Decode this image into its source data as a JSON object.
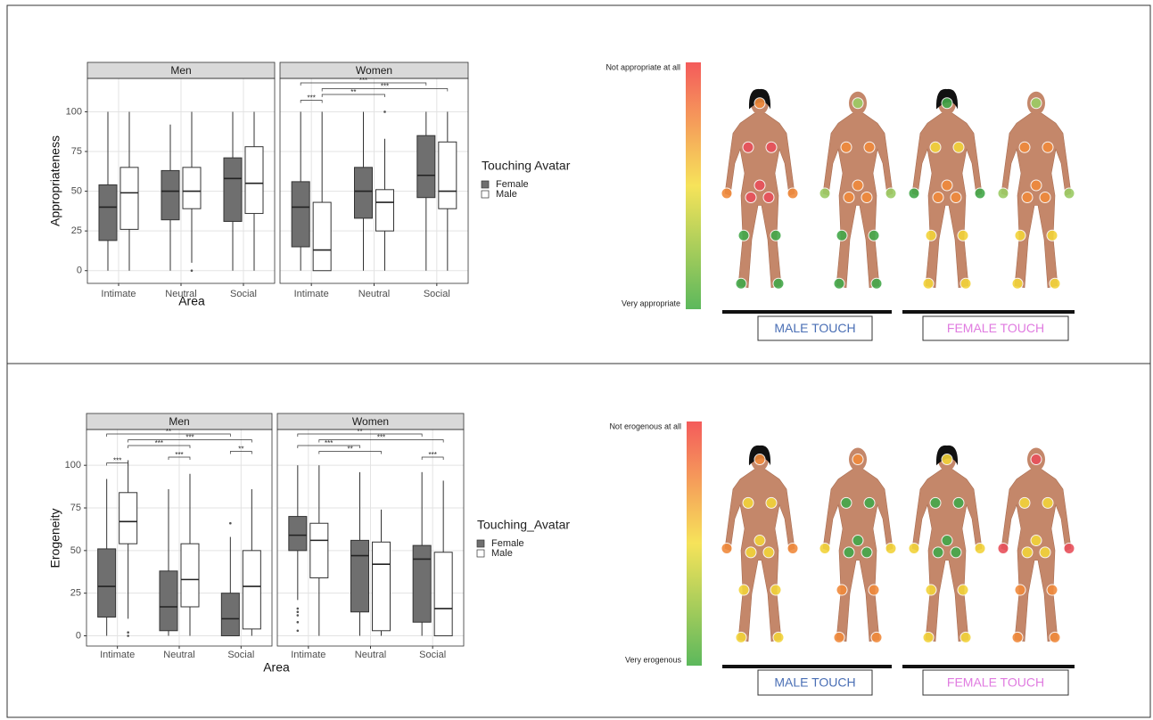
{
  "chart_data": [
    {
      "type": "boxplot",
      "facets": [
        "Men",
        "Women"
      ],
      "categories": [
        "Intimate",
        "Neutral",
        "Social"
      ],
      "ylabel": "Appropriateness",
      "xlabel": "Area",
      "legend_title": "Touching Avatar",
      "ylim": [
        -8,
        121
      ],
      "yticks": [
        0,
        25,
        50,
        75,
        100
      ],
      "grid": true,
      "series": [
        {
          "name": "Female",
          "color": "#6f6f6f",
          "boxes": [
            [
              {
                "min": 0,
                "q1": 19,
                "median": 40,
                "q3": 54,
                "max": 100
              },
              {
                "min": 0,
                "q1": 32,
                "median": 50,
                "q3": 63,
                "max": 92
              },
              {
                "min": 0,
                "q1": 31,
                "median": 58,
                "q3": 71,
                "max": 100
              }
            ],
            [
              {
                "min": 0,
                "q1": 15,
                "median": 40,
                "q3": 56,
                "max": 100
              },
              {
                "min": 0,
                "q1": 33,
                "median": 50,
                "q3": 65,
                "max": 100
              },
              {
                "min": 0,
                "q1": 46,
                "median": 60,
                "q3": 85,
                "max": 100
              }
            ]
          ]
        },
        {
          "name": "Male",
          "color": "#ffffff",
          "boxes": [
            [
              {
                "min": 0,
                "q1": 26,
                "median": 49,
                "q3": 65,
                "max": 100
              },
              {
                "min": 5,
                "q1": 39,
                "median": 50,
                "q3": 65,
                "max": 100,
                "outliers": [
                  0
                ]
              },
              {
                "min": 0,
                "q1": 36,
                "median": 55,
                "q3": 78,
                "max": 100
              }
            ],
            [
              {
                "min": 0,
                "q1": 0,
                "median": 13,
                "q3": 43,
                "max": 100
              },
              {
                "min": 0,
                "q1": 25,
                "median": 43,
                "q3": 51,
                "max": 83,
                "outliers": [
                  100
                ]
              },
              {
                "min": 0,
                "q1": 39,
                "median": 50,
                "q3": 81,
                "max": 100
              }
            ]
          ]
        }
      ],
      "brackets": [
        {
          "facet": 1,
          "from": [
            0,
            0
          ],
          "to": [
            0,
            1
          ],
          "label": "***"
        },
        {
          "facet": 1,
          "from": [
            0,
            1
          ],
          "to": [
            1,
            1
          ],
          "label": "**"
        },
        {
          "facet": 1,
          "from": [
            0,
            1
          ],
          "to": [
            2,
            1
          ],
          "label": "***"
        },
        {
          "facet": 1,
          "from": [
            0,
            0
          ],
          "to": [
            2,
            0
          ],
          "label": "***"
        }
      ],
      "colorbar": {
        "top": "Not appropriate at all",
        "bottom": "Very appropriate",
        "colors": [
          "#f45b5b",
          "#f6e35a",
          "#5cb85c"
        ]
      },
      "touch_groups": [
        "MALE TOUCH",
        "FEMALE TOUCH"
      ],
      "touch_colors": [
        "#4a6fb5",
        "#e07be0"
      ]
    },
    {
      "type": "boxplot",
      "facets": [
        "Men",
        "Women"
      ],
      "categories": [
        "Intimate",
        "Neutral",
        "Social"
      ],
      "ylabel": "Erogeneity",
      "xlabel": "Area",
      "legend_title": "Touching_Avatar",
      "ylim": [
        -6,
        121
      ],
      "yticks": [
        0,
        25,
        50,
        75,
        100
      ],
      "grid": true,
      "series": [
        {
          "name": "Female",
          "color": "#6f6f6f",
          "boxes": [
            [
              {
                "min": 0,
                "q1": 11,
                "median": 29,
                "q3": 51,
                "max": 92
              },
              {
                "min": 0,
                "q1": 3,
                "median": 17,
                "q3": 38,
                "max": 86
              },
              {
                "min": 0,
                "q1": 0,
                "median": 10,
                "q3": 25,
                "max": 58,
                "outliers": [
                  66
                ]
              }
            ],
            [
              {
                "min": 21,
                "q1": 50,
                "median": 59,
                "q3": 70,
                "max": 100,
                "outliers": [
                  3,
                  8,
                  12,
                  14,
                  16
                ]
              },
              {
                "min": 0,
                "q1": 14,
                "median": 47,
                "q3": 56,
                "max": 96
              },
              {
                "min": 0,
                "q1": 8,
                "median": 45,
                "q3": 53,
                "max": 96
              }
            ]
          ]
        },
        {
          "name": "Male",
          "color": "#ffffff",
          "boxes": [
            [
              {
                "min": 10,
                "q1": 54,
                "median": 67,
                "q3": 84,
                "max": 103,
                "outliers": [
                  0,
                  2
                ]
              },
              {
                "min": 0,
                "q1": 17,
                "median": 33,
                "q3": 54,
                "max": 95
              },
              {
                "min": 0,
                "q1": 4,
                "median": 29,
                "q3": 50,
                "max": 86
              }
            ],
            [
              {
                "min": 0,
                "q1": 34,
                "median": 56,
                "q3": 66,
                "max": 100
              },
              {
                "min": 0,
                "q1": 3,
                "median": 42,
                "q3": 55,
                "max": 74
              },
              {
                "min": 0,
                "q1": 0,
                "median": 16,
                "q3": 49,
                "max": 91
              }
            ]
          ]
        }
      ],
      "brackets": [
        {
          "facet": 0,
          "from": [
            0,
            0
          ],
          "to": [
            0,
            1
          ],
          "label": "***"
        },
        {
          "facet": 0,
          "from": [
            1,
            0
          ],
          "to": [
            1,
            1
          ],
          "label": "***"
        },
        {
          "facet": 0,
          "from": [
            2,
            0
          ],
          "to": [
            2,
            1
          ],
          "label": "**"
        },
        {
          "facet": 0,
          "from": [
            0,
            1
          ],
          "to": [
            1,
            1
          ],
          "label": "***"
        },
        {
          "facet": 0,
          "from": [
            0,
            1
          ],
          "to": [
            2,
            1
          ],
          "label": "***"
        },
        {
          "facet": 0,
          "from": [
            0,
            0
          ],
          "to": [
            2,
            0
          ],
          "label": "**"
        },
        {
          "facet": 1,
          "from": [
            2,
            0
          ],
          "to": [
            2,
            1
          ],
          "label": "***"
        },
        {
          "facet": 1,
          "from": [
            0,
            1
          ],
          "to": [
            1,
            1
          ],
          "label": "**"
        },
        {
          "facet": 1,
          "from": [
            0,
            0
          ],
          "to": [
            1,
            0
          ],
          "label": "***"
        },
        {
          "facet": 1,
          "from": [
            0,
            1
          ],
          "to": [
            2,
            1
          ],
          "label": "***"
        },
        {
          "facet": 1,
          "from": [
            0,
            0
          ],
          "to": [
            2,
            0
          ],
          "label": "**"
        }
      ],
      "colorbar": {
        "top": "Not erogenous at all",
        "bottom": "Very erogenous",
        "colors": [
          "#f45b5b",
          "#f6e35a",
          "#5cb85c"
        ]
      },
      "touch_groups": [
        "MALE TOUCH",
        "FEMALE TOUCH"
      ],
      "touch_colors": [
        "#4a6fb5",
        "#e07be0"
      ]
    }
  ]
}
